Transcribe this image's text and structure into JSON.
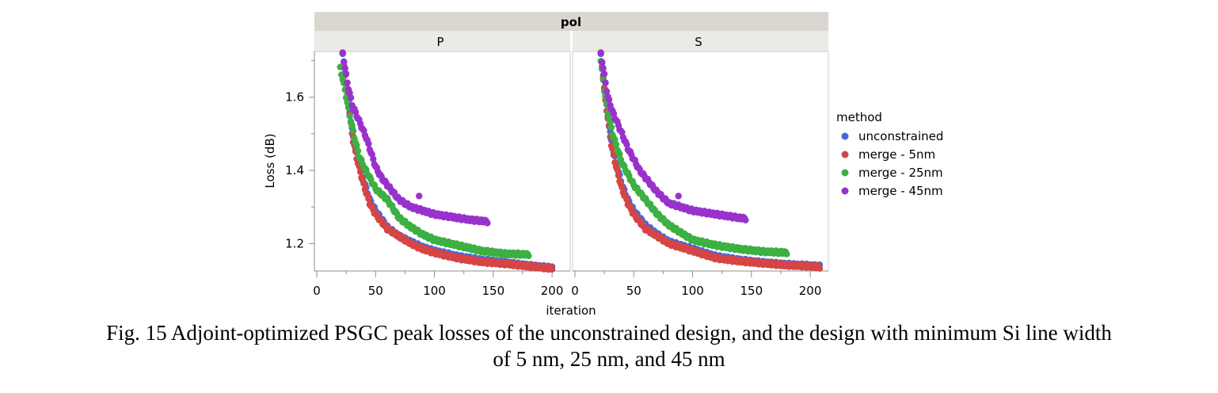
{
  "chart_data": {
    "type": "scatter",
    "facet_header": "pol",
    "panels": [
      "P",
      "S"
    ],
    "xlabel": "iteration",
    "ylabel": "Loss (dB)",
    "xlim": [
      0,
      220
    ],
    "ylim": [
      1.125,
      1.725
    ],
    "xticks": [
      0,
      50,
      100,
      150,
      200
    ],
    "yticks": [
      1.2,
      1.4,
      1.6
    ],
    "legend": {
      "title": "method",
      "placement": "right",
      "entries": [
        "unconstrained",
        "merge - 5nm",
        "merge - 25nm",
        "merge - 45nm"
      ]
    },
    "series": [
      {
        "name": "unconstrained",
        "color": "#4169e1",
        "P": {
          "x": [
            22,
            25,
            28,
            31,
            35,
            40,
            45,
            50,
            60,
            70,
            80,
            90,
            100,
            120,
            140,
            160,
            180,
            200
          ],
          "y": [
            1.72,
            1.64,
            1.56,
            1.49,
            1.43,
            1.37,
            1.32,
            1.29,
            1.245,
            1.22,
            1.205,
            1.19,
            1.18,
            1.165,
            1.155,
            1.148,
            1.14,
            1.134
          ]
        },
        "S": {
          "x": [
            22,
            25,
            28,
            31,
            35,
            40,
            45,
            50,
            60,
            70,
            80,
            90,
            100,
            120,
            140,
            160,
            180,
            200,
            208
          ],
          "y": [
            1.72,
            1.63,
            1.55,
            1.48,
            1.42,
            1.36,
            1.32,
            1.29,
            1.25,
            1.225,
            1.205,
            1.195,
            1.185,
            1.165,
            1.155,
            1.148,
            1.143,
            1.14,
            1.138
          ]
        }
      },
      {
        "name": "merge - 5nm",
        "color": "#d64545",
        "P": {
          "x": [
            22,
            25,
            28,
            31,
            35,
            40,
            45,
            50,
            60,
            70,
            80,
            90,
            100,
            120,
            140,
            160,
            180,
            200
          ],
          "y": [
            1.72,
            1.63,
            1.55,
            1.48,
            1.42,
            1.36,
            1.31,
            1.28,
            1.24,
            1.22,
            1.2,
            1.185,
            1.175,
            1.16,
            1.15,
            1.145,
            1.138,
            1.132
          ]
        },
        "S": {
          "x": [
            22,
            25,
            28,
            31,
            35,
            40,
            45,
            50,
            60,
            70,
            80,
            90,
            100,
            120,
            140,
            160,
            180,
            200,
            208
          ],
          "y": [
            1.72,
            1.62,
            1.54,
            1.47,
            1.41,
            1.35,
            1.31,
            1.28,
            1.24,
            1.22,
            1.2,
            1.19,
            1.18,
            1.16,
            1.152,
            1.146,
            1.141,
            1.138,
            1.136
          ]
        }
      },
      {
        "name": "merge - 25nm",
        "color": "#3cb043",
        "P": {
          "x": [
            20,
            24,
            28,
            32,
            36,
            40,
            45,
            50,
            60,
            70,
            80,
            90,
            100,
            120,
            140,
            160,
            180
          ],
          "y": [
            1.68,
            1.62,
            1.55,
            1.49,
            1.44,
            1.41,
            1.38,
            1.35,
            1.32,
            1.27,
            1.245,
            1.225,
            1.21,
            1.195,
            1.18,
            1.172,
            1.17
          ]
        },
        "S": {
          "x": [
            22,
            25,
            28,
            32,
            36,
            40,
            45,
            50,
            60,
            70,
            80,
            90,
            100,
            120,
            140,
            160,
            180
          ],
          "y": [
            1.7,
            1.62,
            1.56,
            1.5,
            1.46,
            1.42,
            1.39,
            1.36,
            1.32,
            1.28,
            1.25,
            1.23,
            1.21,
            1.195,
            1.185,
            1.178,
            1.175
          ]
        }
      },
      {
        "name": "merge - 45nm",
        "color": "#9932cc",
        "P": {
          "x": [
            22,
            26,
            30,
            34,
            38,
            42,
            46,
            50,
            55,
            60,
            70,
            80,
            90,
            100,
            110,
            120,
            130,
            140,
            145
          ],
          "y": [
            1.72,
            1.64,
            1.58,
            1.55,
            1.52,
            1.49,
            1.45,
            1.41,
            1.38,
            1.36,
            1.32,
            1.3,
            1.29,
            1.28,
            1.275,
            1.27,
            1.265,
            1.262,
            1.26
          ],
          "outlier": [
            87,
            1.33
          ]
        },
        "S": {
          "x": [
            22,
            25,
            28,
            32,
            36,
            40,
            45,
            50,
            55,
            60,
            70,
            80,
            90,
            100,
            110,
            120,
            130,
            140,
            145
          ],
          "y": [
            1.72,
            1.66,
            1.6,
            1.56,
            1.53,
            1.5,
            1.46,
            1.43,
            1.4,
            1.38,
            1.34,
            1.31,
            1.3,
            1.29,
            1.285,
            1.28,
            1.275,
            1.27,
            1.268
          ],
          "outlier": [
            88,
            1.33
          ]
        }
      }
    ]
  },
  "caption": {
    "line1": "Fig. 15 Adjoint-optimized PSGC peak losses of the unconstrained design, and the design with minimum Si line width",
    "line2": "of 5 nm, 25 nm, and 45 nm"
  }
}
